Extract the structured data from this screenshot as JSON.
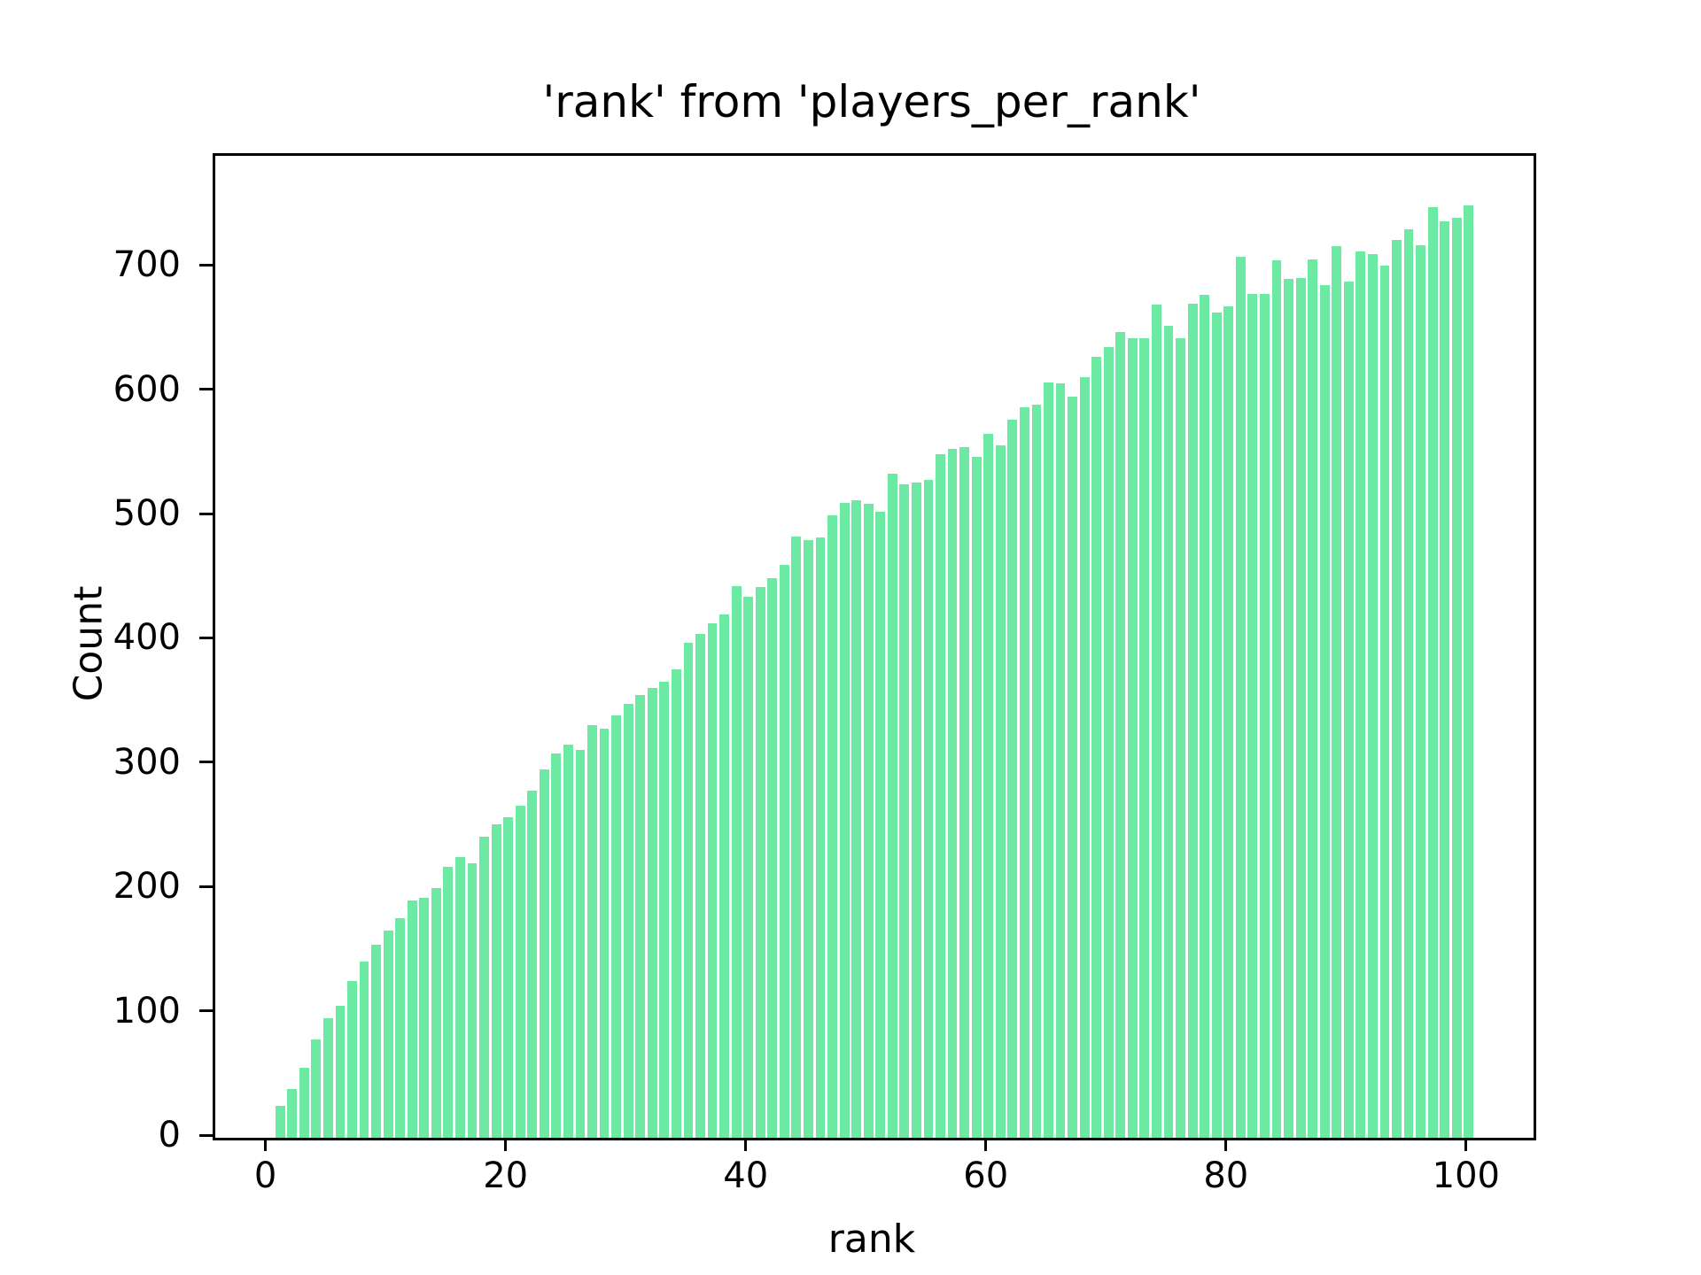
{
  "chart_data": {
    "type": "bar",
    "title": "'rank' from 'players_per_rank'",
    "xlabel": "rank",
    "ylabel": "Count",
    "bar_color": "#6ce9a3",
    "bar_width_data": 0.8,
    "grid": false,
    "legend": null,
    "xlim": [
      -4.4,
      105.4
    ],
    "ylim": [
      0,
      790
    ],
    "xticks": [
      0,
      20,
      40,
      60,
      80,
      100
    ],
    "yticks": [
      0,
      100,
      200,
      300,
      400,
      500,
      600,
      700
    ],
    "x": [
      1,
      2,
      3,
      4,
      5,
      6,
      7,
      8,
      9,
      10,
      11,
      12,
      13,
      14,
      15,
      16,
      17,
      18,
      19,
      20,
      21,
      22,
      23,
      24,
      25,
      26,
      27,
      28,
      29,
      30,
      31,
      32,
      33,
      34,
      35,
      36,
      37,
      38,
      39,
      40,
      41,
      42,
      43,
      44,
      45,
      46,
      47,
      48,
      49,
      50,
      51,
      52,
      53,
      54,
      55,
      56,
      57,
      58,
      59,
      60,
      61,
      62,
      63,
      64,
      65,
      66,
      67,
      68,
      69,
      70,
      71,
      72,
      73,
      74,
      75,
      76,
      77,
      78,
      79,
      80,
      81,
      82,
      83,
      84,
      85,
      86,
      87,
      88,
      89,
      90,
      91,
      92,
      93,
      94,
      95,
      96,
      97,
      98,
      99,
      100
    ],
    "values": [
      26,
      39,
      56,
      79,
      96,
      106,
      126,
      142,
      155,
      167,
      177,
      191,
      193,
      201,
      218,
      226,
      221,
      242,
      252,
      258,
      267,
      279,
      296,
      309,
      316,
      312,
      332,
      329,
      340,
      349,
      356,
      362,
      367,
      377,
      398,
      405,
      414,
      421,
      444,
      435,
      443,
      450,
      461,
      484,
      481,
      483,
      501,
      511,
      513,
      510,
      504,
      534,
      526,
      527,
      529,
      550,
      554,
      556,
      548,
      566,
      557,
      578,
      588,
      590,
      608,
      607,
      596,
      612,
      628,
      636,
      648,
      643,
      643,
      670,
      653,
      643,
      671,
      678,
      664,
      669,
      709,
      679,
      679,
      706,
      691,
      692,
      707,
      686,
      717,
      689,
      713,
      711,
      702,
      722,
      731,
      718,
      749,
      737,
      740,
      750
    ]
  }
}
